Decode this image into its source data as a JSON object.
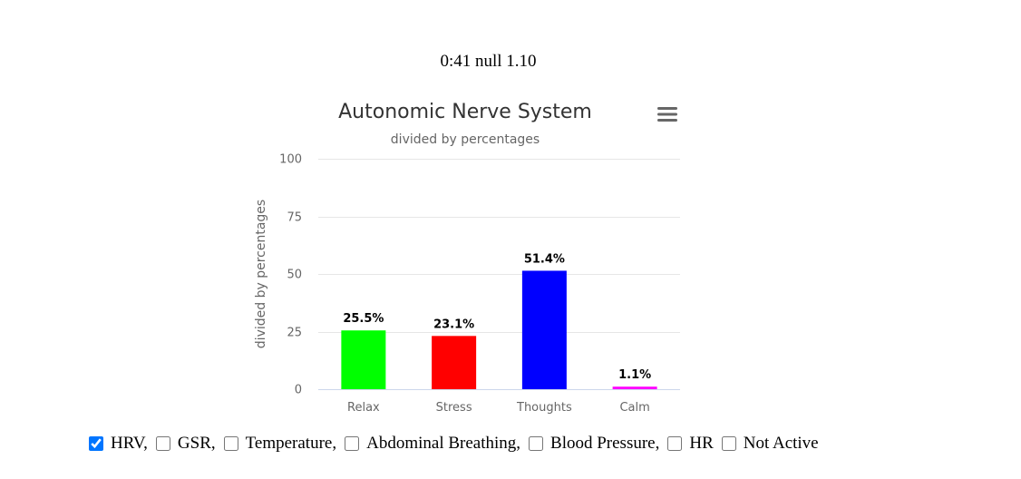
{
  "status": {
    "text": "0:41 null 1.10"
  },
  "chart_data": {
    "type": "bar",
    "title": "Autonomic Nerve System",
    "subtitle": "divided by percentages",
    "xlabel": "",
    "ylabel": "divided by percentages",
    "categories": [
      "Relax",
      "Stress",
      "Thoughts",
      "Calm"
    ],
    "values": [
      25.5,
      23.1,
      51.4,
      1.1
    ],
    "data_labels": [
      "25.5%",
      "23.1%",
      "51.4%",
      "1.1%"
    ],
    "colors": [
      "#00ff00",
      "#ff0000",
      "#0000ff",
      "#ff00ff"
    ],
    "ylim": [
      0,
      100
    ],
    "yticks": [
      0,
      25,
      50,
      75,
      100
    ],
    "grid": true,
    "legend": "none",
    "menu_icon": "hamburger-menu-icon"
  },
  "options": [
    {
      "label": "HRV,",
      "checked": true
    },
    {
      "label": "GSR,",
      "checked": false
    },
    {
      "label": "Temperature,",
      "checked": false
    },
    {
      "label": "Abdominal Breathing,",
      "checked": false
    },
    {
      "label": "Blood Pressure,",
      "checked": false
    },
    {
      "label": "HR",
      "checked": false
    },
    {
      "label": "Not Active",
      "checked": false
    }
  ]
}
